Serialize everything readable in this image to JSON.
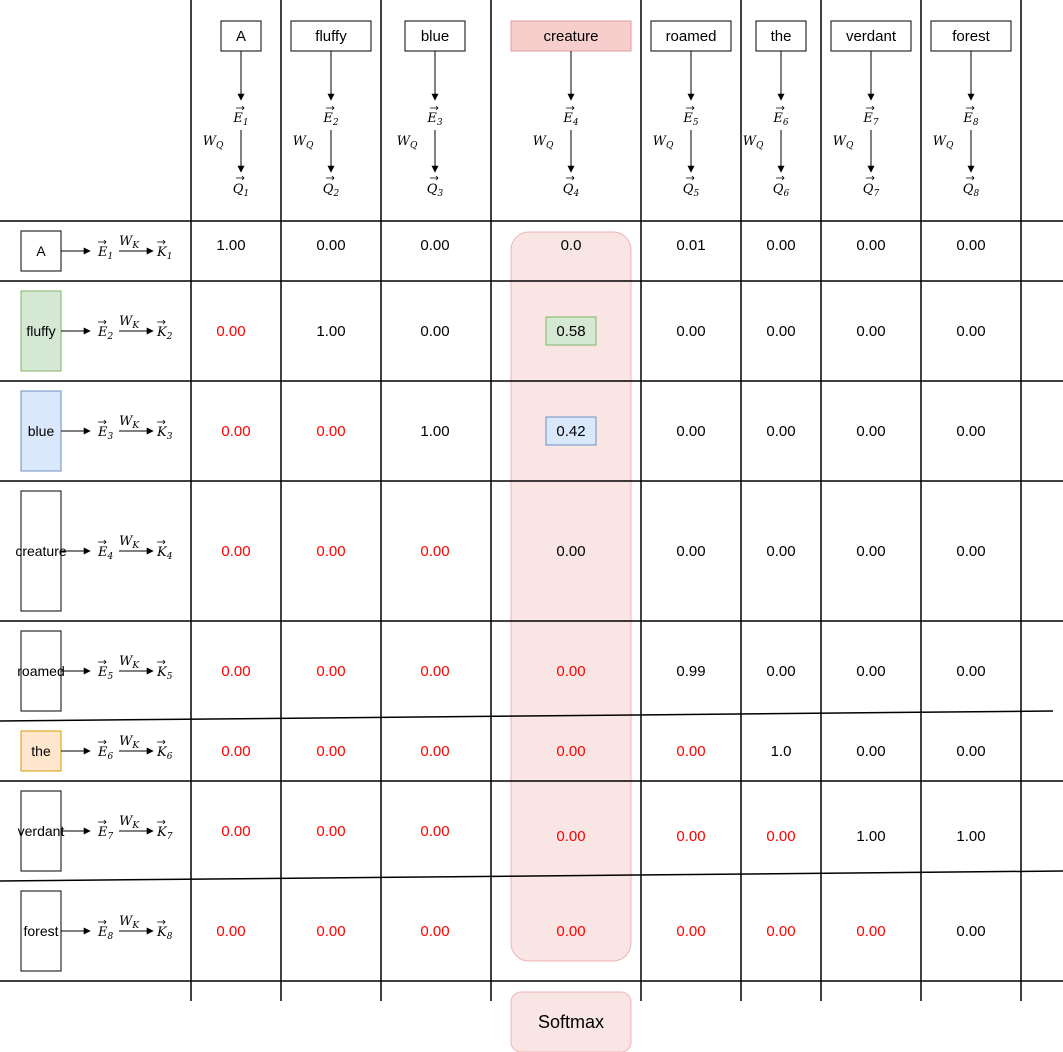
{
  "colors": {
    "grid": "#000000",
    "masked": "#ff0000",
    "value": "#000000",
    "highlight_fill": "#f8cecc",
    "highlight_stroke": "#e59a9a",
    "column_band_fill": "#fae5e5",
    "column_band_stroke": "#f0b3b3",
    "green_fill": "#d5e8d4",
    "green_stroke": "#82b366",
    "blue_fill": "#dae8fc",
    "blue_stroke": "#6c8ebf",
    "orange_fill": "#ffe6cc",
    "orange_stroke": "#d79b00"
  },
  "column_tokens": [
    {
      "label": "A"
    },
    {
      "label": "fluffy"
    },
    {
      "label": "blue"
    },
    {
      "label": "creature",
      "highlight": true
    },
    {
      "label": "roamed"
    },
    {
      "label": "the"
    },
    {
      "label": "verdant"
    },
    {
      "label": "forest"
    }
  ],
  "row_tokens": [
    {
      "label": "A",
      "style": "plain"
    },
    {
      "label": "fluffy",
      "style": "green"
    },
    {
      "label": "blue",
      "style": "blue"
    },
    {
      "label": "creature",
      "style": "plain"
    },
    {
      "label": "roamed",
      "style": "plain"
    },
    {
      "label": "the",
      "style": "orange"
    },
    {
      "label": "verdant",
      "style": "plain"
    },
    {
      "label": "forest",
      "style": "plain"
    }
  ],
  "column_math": {
    "embedding_symbol": "E",
    "query_symbol": "Q",
    "weight_label": "W",
    "weight_subscript": "Q",
    "indices": [
      "1",
      "2",
      "3",
      "4",
      "5",
      "6",
      "7",
      "8"
    ]
  },
  "row_math": {
    "embedding_symbol": "E",
    "key_symbol": "K",
    "weight_label": "W",
    "weight_subscript": "K",
    "indices": [
      "1",
      "2",
      "3",
      "4",
      "5",
      "6",
      "7",
      "8"
    ]
  },
  "matrix": [
    [
      {
        "v": "1.00"
      },
      {
        "v": "0.00"
      },
      {
        "v": "0.00"
      },
      {
        "v": "0.0"
      },
      {
        "v": "0.01"
      },
      {
        "v": "0.00"
      },
      {
        "v": "0.00"
      },
      {
        "v": "0.00"
      }
    ],
    [
      {
        "v": "0.00",
        "masked": true
      },
      {
        "v": "1.00"
      },
      {
        "v": "0.00"
      },
      {
        "v": "0.58",
        "box": "green"
      },
      {
        "v": "0.00"
      },
      {
        "v": "0.00"
      },
      {
        "v": "0.00"
      },
      {
        "v": "0.00"
      }
    ],
    [
      {
        "v": "0.00",
        "masked": true
      },
      {
        "v": "0.00",
        "masked": true
      },
      {
        "v": "1.00"
      },
      {
        "v": "0.42",
        "box": "blue"
      },
      {
        "v": "0.00"
      },
      {
        "v": "0.00"
      },
      {
        "v": "0.00"
      },
      {
        "v": "0.00"
      }
    ],
    [
      {
        "v": "0.00",
        "masked": true
      },
      {
        "v": "0.00",
        "masked": true
      },
      {
        "v": "0.00",
        "masked": true
      },
      {
        "v": "0.00"
      },
      {
        "v": "0.00"
      },
      {
        "v": "0.00"
      },
      {
        "v": "0.00"
      },
      {
        "v": "0.00"
      }
    ],
    [
      {
        "v": "0.00",
        "masked": true
      },
      {
        "v": "0.00",
        "masked": true
      },
      {
        "v": "0.00",
        "masked": true
      },
      {
        "v": "0.00",
        "masked": true
      },
      {
        "v": "0.99"
      },
      {
        "v": "0.00"
      },
      {
        "v": "0.00"
      },
      {
        "v": "0.00"
      }
    ],
    [
      {
        "v": "0.00",
        "masked": true
      },
      {
        "v": "0.00",
        "masked": true
      },
      {
        "v": "0.00",
        "masked": true
      },
      {
        "v": "0.00",
        "masked": true
      },
      {
        "v": "0.00",
        "masked": true
      },
      {
        "v": "1.0"
      },
      {
        "v": "0.00"
      },
      {
        "v": "0.00"
      }
    ],
    [
      {
        "v": "0.00",
        "masked": true
      },
      {
        "v": "0.00",
        "masked": true
      },
      {
        "v": "0.00",
        "masked": true
      },
      {
        "v": "0.00",
        "masked": true
      },
      {
        "v": "0.00",
        "masked": true
      },
      {
        "v": "0.00",
        "masked": true
      },
      {
        "v": "1.00"
      },
      {
        "v": "1.00"
      }
    ],
    [
      {
        "v": "0.00",
        "masked": true
      },
      {
        "v": "0.00",
        "masked": true
      },
      {
        "v": "0.00",
        "masked": true
      },
      {
        "v": "0.00",
        "masked": true
      },
      {
        "v": "0.00",
        "masked": true
      },
      {
        "v": "0.00",
        "masked": true
      },
      {
        "v": "0.00",
        "masked": true
      },
      {
        "v": "0.00"
      }
    ]
  ],
  "softmax_label": "Softmax"
}
